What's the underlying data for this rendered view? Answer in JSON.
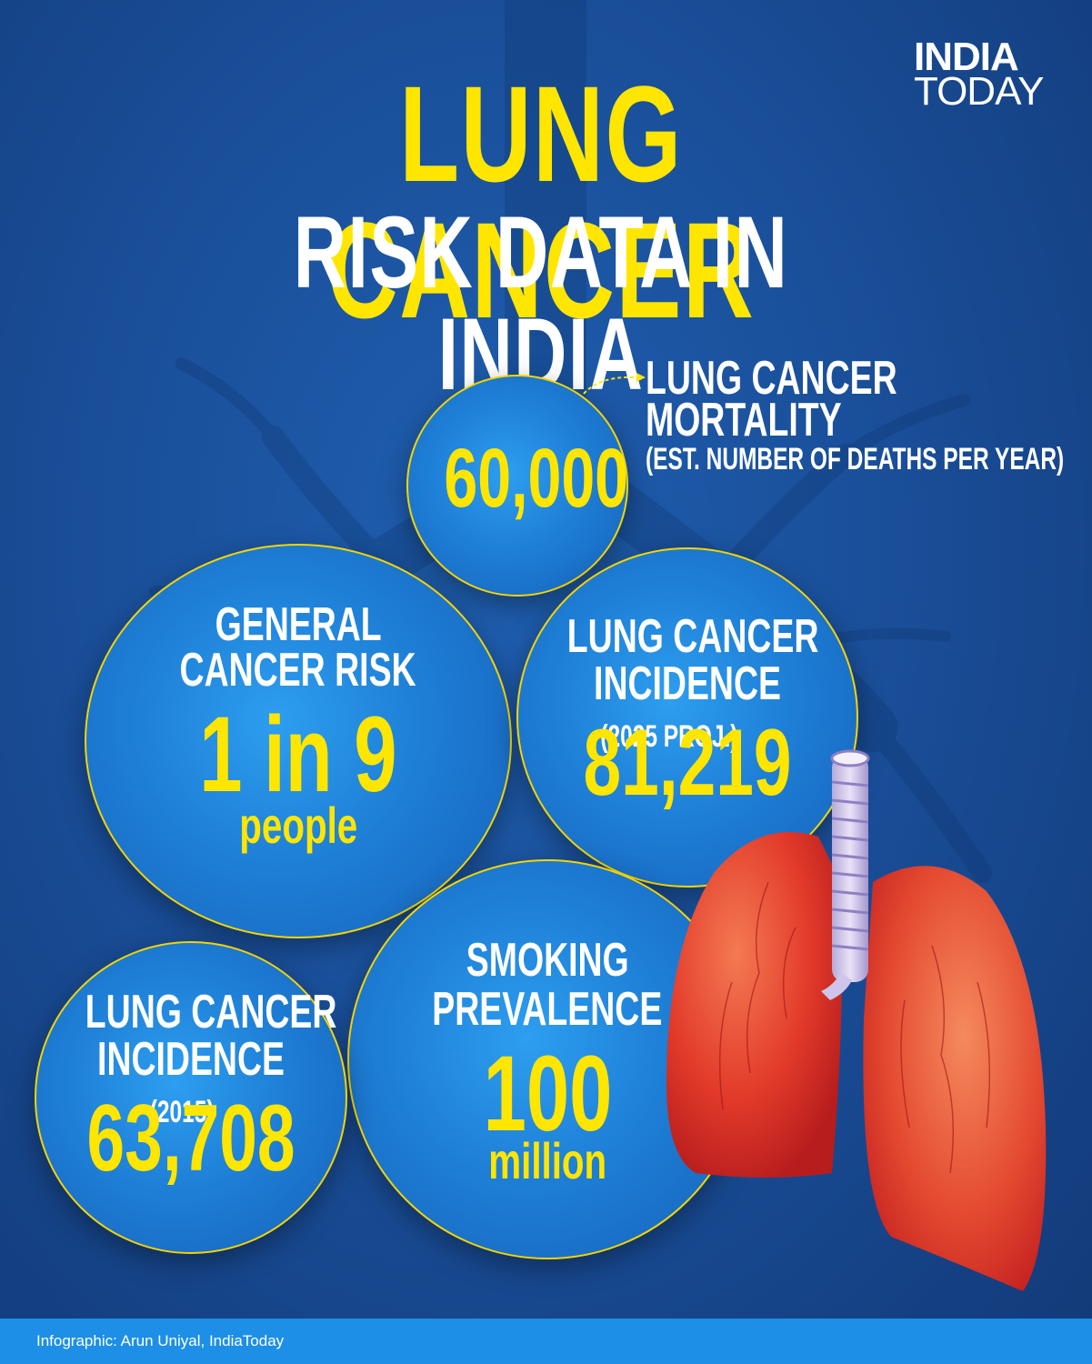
{
  "header": {
    "title_line1": "LUNG CANCER",
    "title_line2": "RISK DATA IN INDIA",
    "logo_line1": "INDIA",
    "logo_line2": "TODAY"
  },
  "mortality": {
    "value": "60,000",
    "label_line1": "LUNG CANCER",
    "label_line2": "MORTALITY",
    "label_note": "(EST. NUMBER OF DEATHS PER YEAR)"
  },
  "general_risk": {
    "label_line1": "GENERAL",
    "label_line2": "CANCER RISK",
    "value": "1 in 9",
    "unit": "people"
  },
  "incidence_2025": {
    "label_line1": "LUNG CANCER",
    "label_line2": "INCIDENCE",
    "label_note": "(2025 PROJ.)",
    "value": "81,219"
  },
  "incidence_2015": {
    "label_line1": "LUNG CANCER",
    "label_line2": "INCIDENCE",
    "label_note": "(2015)",
    "value": "63,708"
  },
  "smoking": {
    "label_line1": "SMOKING",
    "label_line2": "PREVALENCE",
    "value": "100",
    "unit": "million"
  },
  "footer": {
    "credit": "Infographic: Arun Uniyal, IndiaToday"
  },
  "colors": {
    "title_yellow": "#ffe600",
    "background_blue": "#1a4f9a",
    "circle_blue": "#1e7fd6",
    "circle_border": "#f5d400",
    "lung_red": "#e23a2a",
    "footer_blue": "#1d8fe6"
  }
}
